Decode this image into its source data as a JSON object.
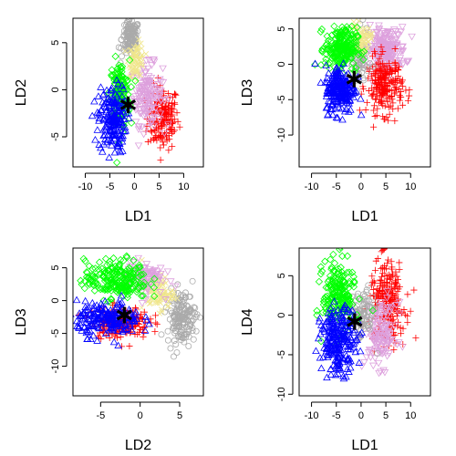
{
  "figure": {
    "type": "lda-scatter-matrix"
  },
  "colors": {
    "red": "#ff0000",
    "pink": "#dda0dd",
    "gray": "#aaaaaa",
    "yellow": "#f0e68c",
    "green": "#00ff00",
    "blue": "#0000ff",
    "star": "#000000"
  },
  "chart_data": [
    {
      "type": "scatter",
      "xlabel": "LD1",
      "ylabel": "LD2",
      "xlim": [
        -12.5,
        14
      ],
      "ylim": [
        -8.2,
        7.6
      ],
      "xticks": [
        -10,
        -5,
        0,
        5,
        10
      ],
      "yticks": [
        -5,
        0,
        5
      ],
      "star": [
        -1.3,
        -1.6
      ],
      "clusters": [
        {
          "color": "red",
          "marker": "plus",
          "cx": 5.8,
          "cy": -3.0,
          "sx": 1.6,
          "sy": 1.7,
          "n": 170
        },
        {
          "color": "pink",
          "marker": "triangle-down",
          "cx": 2.5,
          "cy": -0.5,
          "sx": 1.6,
          "sy": 1.6,
          "n": 150
        },
        {
          "color": "gray",
          "marker": "circle",
          "cx": -0.8,
          "cy": 5.4,
          "sx": 0.9,
          "sy": 1.0,
          "n": 130
        },
        {
          "color": "yellow",
          "marker": "x",
          "cx": 0.4,
          "cy": 3.2,
          "sx": 0.8,
          "sy": 0.9,
          "n": 70
        },
        {
          "color": "green",
          "marker": "diamond",
          "cx": -3.0,
          "cy": -0.5,
          "sx": 1.0,
          "sy": 1.8,
          "n": 150
        },
        {
          "color": "blue",
          "marker": "triangle",
          "cx": -4.5,
          "cy": -3.2,
          "sx": 1.4,
          "sy": 1.8,
          "n": 190
        }
      ]
    },
    {
      "type": "scatter",
      "xlabel": "LD1",
      "ylabel": "LD3",
      "xlim": [
        -12.5,
        14
      ],
      "ylim": [
        -14.5,
        6.5
      ],
      "xticks": [
        -10,
        -5,
        0,
        5,
        10
      ],
      "yticks": [
        -10,
        -5,
        0,
        5
      ],
      "star": [
        -1.4,
        -2.1
      ],
      "clusters": [
        {
          "color": "pink",
          "marker": "triangle-down",
          "cx": 5.0,
          "cy": 2.0,
          "sx": 2.0,
          "sy": 1.6,
          "n": 200
        },
        {
          "color": "red",
          "marker": "plus",
          "cx": 4.8,
          "cy": -3.0,
          "sx": 1.8,
          "sy": 2.0,
          "n": 220
        },
        {
          "color": "gray",
          "marker": "circle",
          "cx": -0.5,
          "cy": 0.5,
          "sx": 1.0,
          "sy": 2.0,
          "n": 80
        },
        {
          "color": "yellow",
          "marker": "x",
          "cx": 0.0,
          "cy": 3.5,
          "sx": 1.0,
          "sy": 1.0,
          "n": 70
        },
        {
          "color": "green",
          "marker": "diamond",
          "cx": -4.0,
          "cy": 2.2,
          "sx": 1.6,
          "sy": 1.5,
          "n": 220
        },
        {
          "color": "blue",
          "marker": "triangle",
          "cx": -4.2,
          "cy": -3.5,
          "sx": 1.5,
          "sy": 1.7,
          "n": 220
        }
      ]
    },
    {
      "type": "scatter",
      "xlabel": "LD2",
      "ylabel": "LD3",
      "xlim": [
        -8.5,
        8.0
      ],
      "ylim": [
        -14.5,
        8.0
      ],
      "xticks": [
        -5,
        0,
        5
      ],
      "yticks": [
        -10,
        -5,
        0,
        5
      ],
      "star": [
        -2.0,
        -2.2
      ],
      "clusters": [
        {
          "color": "gray",
          "marker": "circle",
          "cx": 5.2,
          "cy": -2.5,
          "sx": 0.9,
          "sy": 2.0,
          "n": 160
        },
        {
          "color": "yellow",
          "marker": "x",
          "cx": 2.2,
          "cy": 1.2,
          "sx": 1.0,
          "sy": 1.4,
          "n": 90
        },
        {
          "color": "pink",
          "marker": "triangle-down",
          "cx": 0.5,
          "cy": 3.5,
          "sx": 1.2,
          "sy": 1.3,
          "n": 90
        },
        {
          "color": "green",
          "marker": "diamond",
          "cx": -3.0,
          "cy": 3.2,
          "sx": 2.0,
          "sy": 1.5,
          "n": 220
        },
        {
          "color": "red",
          "marker": "plus",
          "cx": -2.5,
          "cy": -3.3,
          "sx": 1.8,
          "sy": 1.2,
          "n": 180
        },
        {
          "color": "blue",
          "marker": "triangle",
          "cx": -4.0,
          "cy": -2.8,
          "sx": 2.0,
          "sy": 1.3,
          "n": 200
        }
      ]
    },
    {
      "type": "scatter",
      "xlabel": "LD1",
      "ylabel": "LD4",
      "xlim": [
        -12.5,
        14
      ],
      "ylim": [
        -10.2,
        8.5
      ],
      "xticks": [
        -10,
        -5,
        0,
        5,
        10
      ],
      "yticks": [
        -10,
        -5,
        0,
        5
      ],
      "star": [
        -1.3,
        -0.8
      ],
      "clusters": [
        {
          "color": "red",
          "marker": "plus",
          "cx": 5.3,
          "cy": 1.6,
          "sx": 1.8,
          "sy": 2.6,
          "n": 240
        },
        {
          "color": "pink",
          "marker": "triangle-down",
          "cx": 4.0,
          "cy": -2.5,
          "sx": 1.6,
          "sy": 2.0,
          "n": 140
        },
        {
          "color": "gray",
          "marker": "circle",
          "cx": 0.2,
          "cy": 0.0,
          "sx": 1.2,
          "sy": 1.6,
          "n": 90
        },
        {
          "color": "green",
          "marker": "diamond",
          "cx": -4.5,
          "cy": 2.6,
          "sx": 1.6,
          "sy": 2.2,
          "n": 200
        },
        {
          "color": "blue",
          "marker": "triangle",
          "cx": -4.5,
          "cy": -3.2,
          "sx": 1.8,
          "sy": 2.0,
          "n": 240
        }
      ]
    }
  ]
}
